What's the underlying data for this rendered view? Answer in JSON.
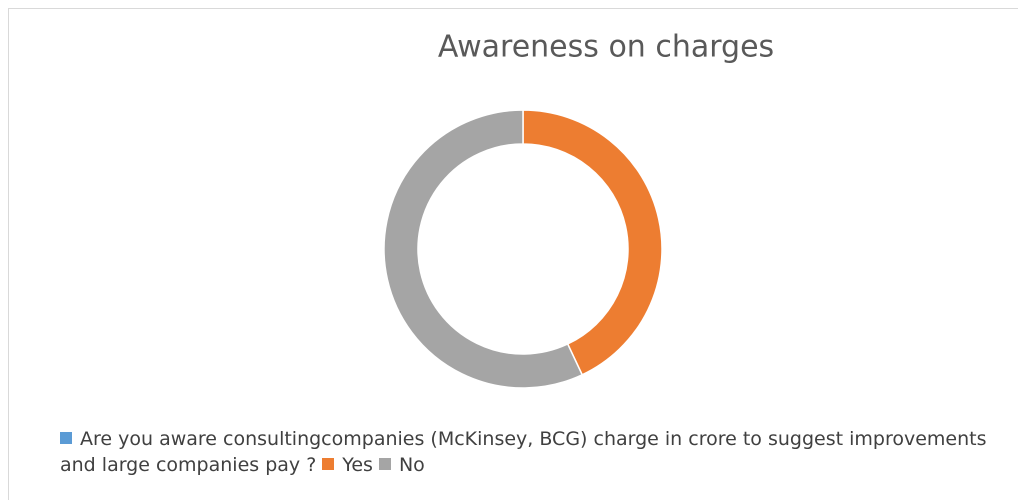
{
  "chart_data": {
    "type": "donut",
    "title": "Awareness on charges",
    "categories": [
      "Are you aware consultingcompanies (McKinsey, BCG) charge in crore to suggest improvements and large companies pay ?",
      "Yes",
      "No"
    ],
    "values": [
      0,
      43,
      57
    ],
    "colors": [
      "#5b9bd5",
      "#ed7d31",
      "#a5a5a5"
    ],
    "legend": "bottom"
  }
}
